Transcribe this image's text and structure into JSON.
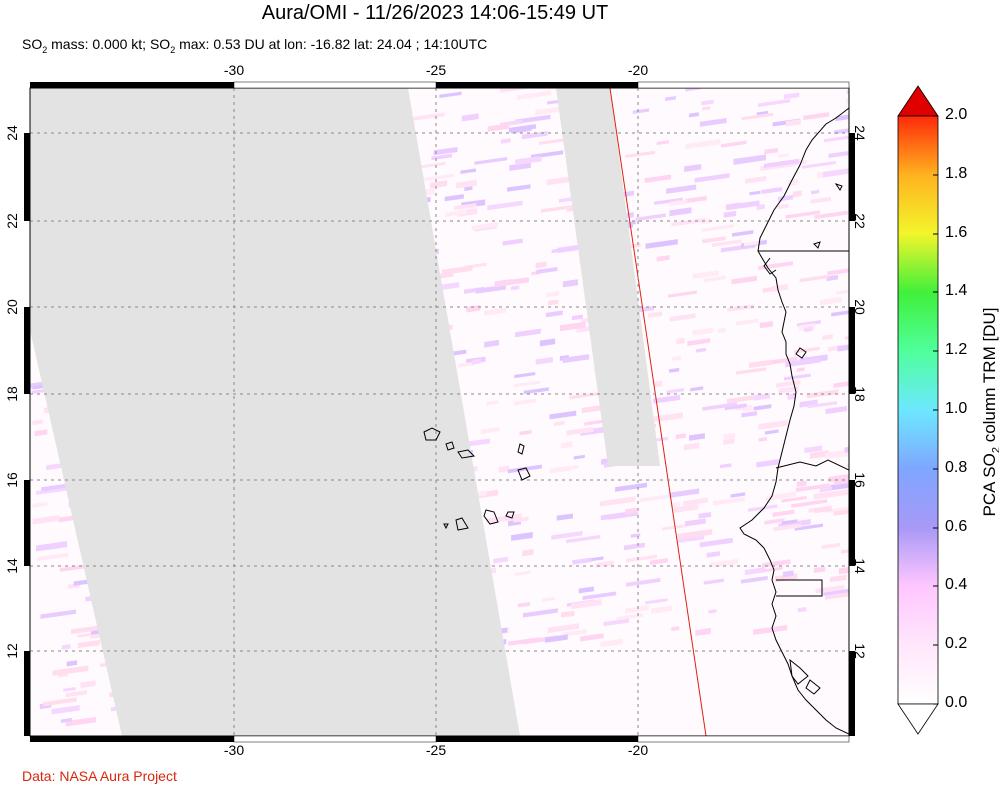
{
  "header": {
    "title": "Aura/OMI - 11/26/2023 14:06-15:49 UT",
    "subtitle_prefix": "SO",
    "subtitle_sub": "2",
    "subtitle_mid": " mass: 0.000 kt; SO",
    "subtitle_sub2": "2",
    "subtitle_rest": " max: 0.53 DU at lon: -16.82 lat: 24.04 ; 14:10UTC"
  },
  "map": {
    "lon_ticks": [
      "-30",
      "-25",
      "-20"
    ],
    "lat_ticks": [
      "24",
      "22",
      "20",
      "18",
      "16",
      "14",
      "12"
    ],
    "lon_range": [
      -35,
      -15
    ],
    "lat_range": [
      10,
      25
    ],
    "nodata_color": "#e3e3e3",
    "orbit_line_color": "#dd2211"
  },
  "colorbar": {
    "ticks": [
      "2.0",
      "1.8",
      "1.6",
      "1.4",
      "1.2",
      "1.0",
      "0.8",
      "0.6",
      "0.4",
      "0.2",
      "0.0"
    ],
    "label_prefix": "PCA SO",
    "label_sub": "2",
    "label_rest": " column TRM [DU]",
    "colors": [
      "#ffffff",
      "#ffc8ff",
      "#a899f7",
      "#7fa6ff",
      "#6de8ff",
      "#4fff9b",
      "#41f03a",
      "#c3f12b",
      "#f3f52b",
      "#ffb21f",
      "#ff2a0a",
      "#e00000"
    ]
  },
  "footer": {
    "credit": "Data: NASA Aura Project"
  }
}
